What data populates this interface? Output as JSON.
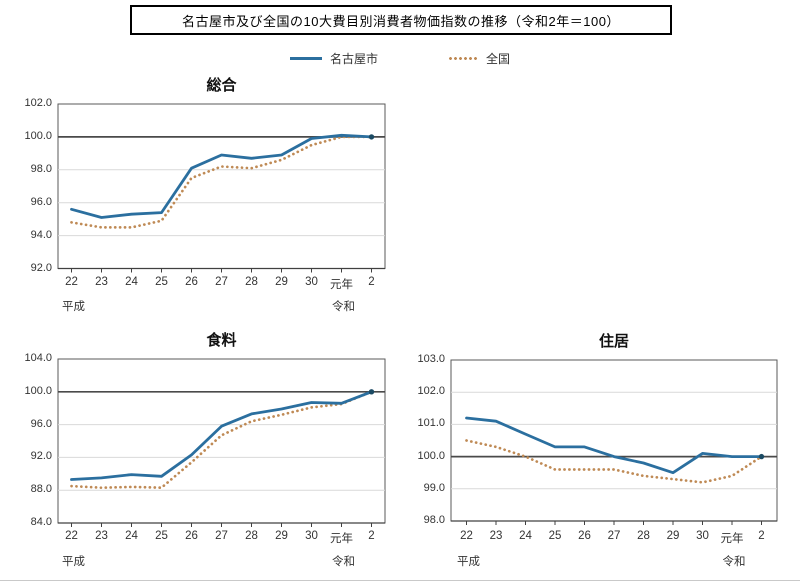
{
  "title_box": {
    "text": "名古屋市及び全国の10大費目別消費者物価指数の推移（令和2年＝100）"
  },
  "legend": {
    "nagoya": "名古屋市",
    "national": "全国"
  },
  "colors": {
    "nagoya_line": "#2B6F9F",
    "national_dots": "#BF8A55",
    "end_marker": "#1B4A63",
    "gridline": "#D9D9D9",
    "baseline": "#4A4A4A",
    "frame": "#595959",
    "axis": "#404040"
  },
  "x_axis": {
    "categories": [
      "22",
      "23",
      "24",
      "25",
      "26",
      "27",
      "28",
      "29",
      "30",
      "元年",
      "2"
    ],
    "era_heisei": "平成",
    "era_reiwa": "令和"
  },
  "chart_data": [
    {
      "type": "line",
      "title": "総合",
      "categories": [
        "22",
        "23",
        "24",
        "25",
        "26",
        "27",
        "28",
        "29",
        "30",
        "元年",
        "2"
      ],
      "ylim": [
        92.0,
        102.0
      ],
      "ytick_step": 2.0,
      "baseline": 100.0,
      "grid": true,
      "legend_position": "top-shared",
      "series": [
        {
          "name": "名古屋市",
          "style": "solid",
          "values": [
            95.6,
            95.1,
            95.3,
            95.4,
            98.1,
            98.9,
            98.7,
            98.9,
            99.9,
            100.1,
            100.0
          ]
        },
        {
          "name": "全国",
          "style": "dotted",
          "values": [
            94.8,
            94.5,
            94.5,
            94.9,
            97.5,
            98.2,
            98.1,
            98.6,
            99.5,
            100.0,
            100.0
          ]
        }
      ]
    },
    {
      "type": "line",
      "title": "食料",
      "categories": [
        "22",
        "23",
        "24",
        "25",
        "26",
        "27",
        "28",
        "29",
        "30",
        "元年",
        "2"
      ],
      "ylim": [
        84.0,
        104.0
      ],
      "ytick_step": 4.0,
      "baseline": 100.0,
      "grid": true,
      "legend_position": "top-shared",
      "series": [
        {
          "name": "名古屋市",
          "style": "solid",
          "values": [
            89.3,
            89.5,
            89.9,
            89.7,
            92.3,
            95.8,
            97.3,
            97.9,
            98.7,
            98.6,
            100.0
          ]
        },
        {
          "name": "全国",
          "style": "dotted",
          "values": [
            88.5,
            88.3,
            88.4,
            88.3,
            91.4,
            94.7,
            96.4,
            97.2,
            98.1,
            98.5,
            100.0
          ]
        }
      ]
    },
    {
      "type": "line",
      "title": "住居",
      "categories": [
        "22",
        "23",
        "24",
        "25",
        "26",
        "27",
        "28",
        "29",
        "30",
        "元年",
        "2"
      ],
      "ylim": [
        98.0,
        103.0
      ],
      "ytick_step": 1.0,
      "baseline": 100.0,
      "grid": true,
      "legend_position": "top-shared",
      "series": [
        {
          "name": "名古屋市",
          "style": "solid",
          "values": [
            101.2,
            101.1,
            100.7,
            100.3,
            100.3,
            100.0,
            99.8,
            99.5,
            100.1,
            100.0,
            100.0
          ]
        },
        {
          "name": "全国",
          "style": "dotted",
          "values": [
            100.5,
            100.3,
            100.0,
            99.6,
            99.6,
            99.6,
            99.4,
            99.3,
            99.2,
            99.4,
            100.0
          ]
        }
      ]
    }
  ]
}
